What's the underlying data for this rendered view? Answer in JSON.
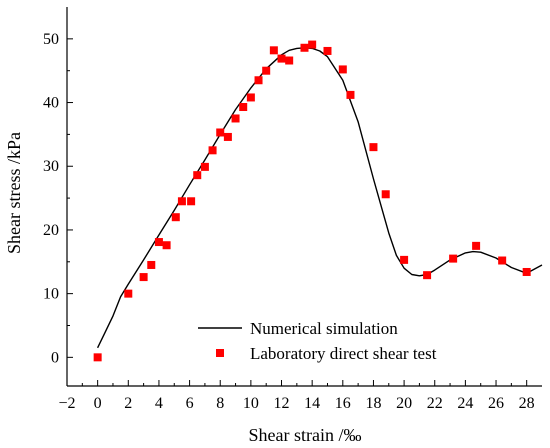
{
  "chart_data": {
    "type": "line",
    "xlabel": "Shear strain /‰",
    "ylabel": "Shear stress /kPa",
    "xlim": [
      -2,
      29
    ],
    "ylim": [
      -4.5,
      55
    ],
    "xticks": [
      -2,
      0,
      2,
      4,
      6,
      8,
      10,
      12,
      14,
      16,
      18,
      20,
      22,
      24,
      26,
      28
    ],
    "yticks": [
      0,
      10,
      20,
      30,
      40,
      50
    ],
    "tick_labels_x": [
      "−2",
      "0",
      "2",
      "4",
      "6",
      "8",
      "10",
      "12",
      "14",
      "16",
      "18",
      "20",
      "22",
      "24",
      "26",
      "28"
    ],
    "tick_labels_y": [
      "0",
      "10",
      "20",
      "30",
      "40",
      "50"
    ],
    "grid": false,
    "legend_position": "bottom-center",
    "series": [
      {
        "name": "Numerical simulation",
        "kind": "line",
        "color": "#000000",
        "x": [
          0,
          0.5,
          1,
          1.5,
          2,
          3,
          4,
          5,
          6,
          7,
          8,
          9,
          10,
          11,
          12,
          12.5,
          13,
          13.5,
          14,
          14.5,
          15,
          16,
          17,
          18,
          19,
          19.5,
          20,
          20.5,
          21,
          21.5,
          22,
          23,
          24,
          24.5,
          25,
          26,
          27,
          28,
          29
        ],
        "y": [
          1.5,
          4,
          6.5,
          9.5,
          11.5,
          15.3,
          19.2,
          23.1,
          27.1,
          31,
          35,
          38.9,
          42.3,
          45.3,
          47.5,
          48.2,
          48.5,
          48.6,
          48.5,
          48.1,
          47.2,
          43.5,
          37,
          28,
          19.5,
          16,
          14,
          13,
          12.8,
          13,
          13.7,
          15.3,
          16.4,
          16.6,
          16.5,
          15.6,
          14.1,
          13.2,
          14.5
        ]
      },
      {
        "name": "Laboratory direct shear test",
        "kind": "scatter",
        "color": "#ff0000",
        "x": [
          0,
          2,
          3,
          3.5,
          4,
          4.5,
          5.1,
          5.5,
          6.1,
          6.5,
          7,
          7.5,
          8,
          8.5,
          9,
          9.5,
          10,
          10.5,
          11,
          11.5,
          12,
          12.5,
          13.5,
          14,
          15,
          16,
          16.5,
          18,
          18.8,
          20,
          21.5,
          23.2,
          24.7,
          26.4,
          28
        ],
        "y": [
          0,
          10,
          12.6,
          14.5,
          18.1,
          17.6,
          22,
          24.5,
          24.5,
          28.6,
          29.9,
          32.5,
          35.3,
          34.6,
          37.5,
          39.3,
          40.8,
          43.5,
          45,
          48.2,
          46.9,
          46.6,
          48.6,
          49.1,
          48.1,
          45.2,
          41.2,
          33,
          25.6,
          15.3,
          12.9,
          15.5,
          17.5,
          15.2,
          13.4
        ]
      }
    ]
  }
}
